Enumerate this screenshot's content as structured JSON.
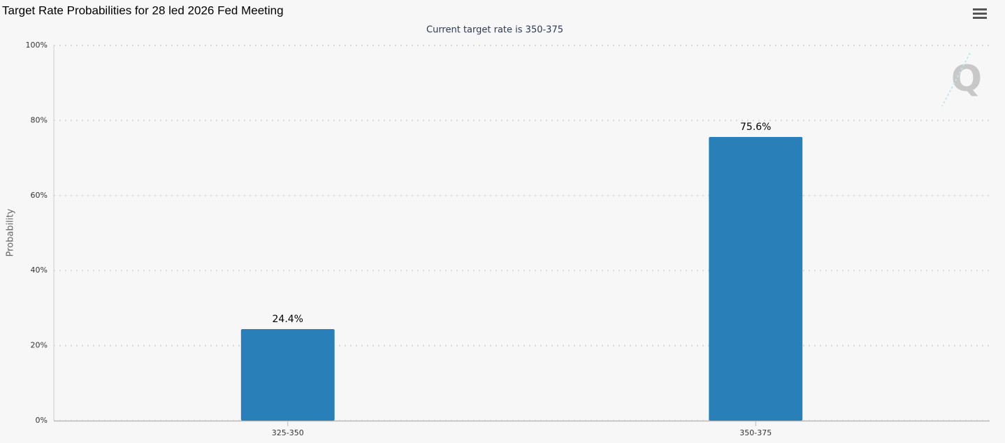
{
  "chart_data": {
    "type": "bar",
    "title": "Target Rate Probabilities for 28 led 2026 Fed Meeting",
    "subtitle": "Current target rate is 350-375",
    "y_label": "Probability",
    "categories": [
      "325-350",
      "350-375"
    ],
    "values": [
      24.4,
      75.6
    ],
    "value_labels": [
      "24.4%",
      "75.6%"
    ],
    "color": "#2980b9",
    "ylim": [
      0,
      100
    ],
    "yticks": [
      {
        "value": 0,
        "label": "0%"
      },
      {
        "value": 20,
        "label": "20%"
      },
      {
        "value": 40,
        "label": "40%"
      },
      {
        "value": 60,
        "label": "60%"
      },
      {
        "value": 80,
        "label": "80%"
      },
      {
        "value": 100,
        "label": "100%"
      }
    ],
    "grid": true
  }
}
